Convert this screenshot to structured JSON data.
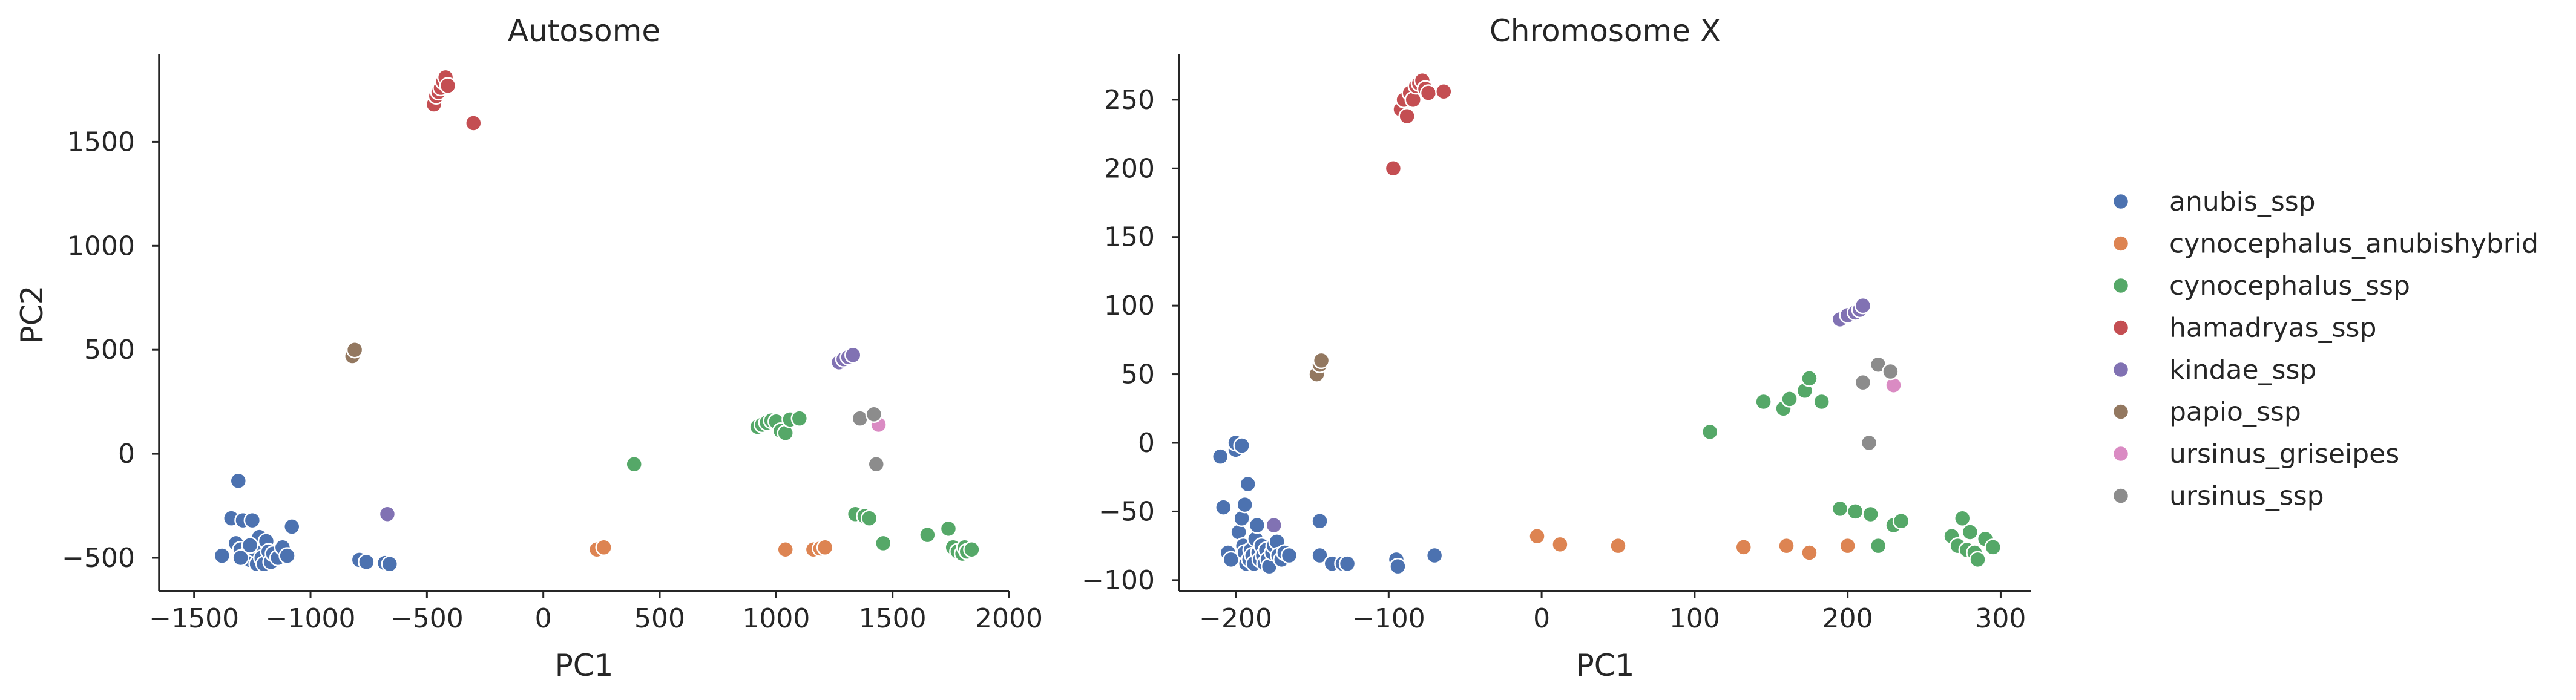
{
  "figure": {
    "legend_placement": "right",
    "legend_entries": [
      {
        "label": "anubis_ssp",
        "color": "#4c72b0"
      },
      {
        "label": "cynocephalus_anubishybrid",
        "color": "#dd8452"
      },
      {
        "label": "cynocephalus_ssp",
        "color": "#55a868"
      },
      {
        "label": "hamadryas_ssp",
        "color": "#c44e52"
      },
      {
        "label": "kindae_ssp",
        "color": "#8172b3"
      },
      {
        "label": "papio_ssp",
        "color": "#937860"
      },
      {
        "label": "ursinus_griseipes",
        "color": "#da8bc3"
      },
      {
        "label": "ursinus_ssp",
        "color": "#8c8c8c"
      }
    ]
  },
  "chart_data": [
    {
      "type": "scatter",
      "title": "Autosome",
      "xlabel": "PC1",
      "ylabel": "PC2",
      "xlim": [
        -1650,
        2000
      ],
      "ylim": [
        -660,
        1920
      ],
      "xticks": [
        -1500,
        -1000,
        -500,
        0,
        500,
        1000,
        1500,
        2000
      ],
      "xtick_labels": [
        "−1500",
        "−1000",
        "−500",
        "0",
        "500",
        "1000",
        "1500",
        "2000"
      ],
      "yticks": [
        -500,
        0,
        500,
        1000,
        1500
      ],
      "ytick_labels": [
        "−500",
        "0",
        "500",
        "1000",
        "1500"
      ],
      "grid": false,
      "series": [
        {
          "name": "anubis_ssp",
          "color": "#4c72b0",
          "points": [
            [
              -1380,
              -490
            ],
            [
              -1340,
              -310
            ],
            [
              -1320,
              -430
            ],
            [
              -1300,
              -460
            ],
            [
              -1310,
              -130
            ],
            [
              -1290,
              -320
            ],
            [
              -1270,
              -480
            ],
            [
              -1260,
              -510
            ],
            [
              -1250,
              -320
            ],
            [
              -1240,
              -460
            ],
            [
              -1230,
              -530
            ],
            [
              -1220,
              -400
            ],
            [
              -1210,
              -500
            ],
            [
              -1200,
              -530
            ],
            [
              -1190,
              -420
            ],
            [
              -1180,
              -470
            ],
            [
              -1170,
              -520
            ],
            [
              -1160,
              -480
            ],
            [
              -1140,
              -500
            ],
            [
              -1120,
              -450
            ],
            [
              -1100,
              -490
            ],
            [
              -1080,
              -350
            ],
            [
              -1300,
              -500
            ],
            [
              -1260,
              -440
            ],
            [
              -790,
              -510
            ],
            [
              -760,
              -520
            ],
            [
              -680,
              -525
            ],
            [
              -660,
              -530
            ]
          ]
        },
        {
          "name": "cynocephalus_anubishybrid",
          "color": "#dd8452",
          "points": [
            [
              230,
              -460
            ],
            [
              260,
              -450
            ],
            [
              1040,
              -460
            ],
            [
              1160,
              -460
            ],
            [
              1190,
              -455
            ],
            [
              1210,
              -450
            ]
          ]
        },
        {
          "name": "cynocephalus_ssp",
          "color": "#55a868",
          "points": [
            [
              390,
              -50
            ],
            [
              920,
              130
            ],
            [
              940,
              140
            ],
            [
              960,
              150
            ],
            [
              980,
              160
            ],
            [
              1000,
              155
            ],
            [
              1020,
              110
            ],
            [
              1040,
              100
            ],
            [
              1060,
              165
            ],
            [
              1100,
              170
            ],
            [
              1340,
              -290
            ],
            [
              1380,
              -300
            ],
            [
              1400,
              -310
            ],
            [
              1460,
              -430
            ],
            [
              1650,
              -390
            ],
            [
              1740,
              -360
            ],
            [
              1760,
              -450
            ],
            [
              1780,
              -470
            ],
            [
              1800,
              -480
            ],
            [
              1810,
              -450
            ],
            [
              1820,
              -470
            ],
            [
              1840,
              -460
            ]
          ]
        },
        {
          "name": "hamadryas_ssp",
          "color": "#c44e52",
          "points": [
            [
              -470,
              1680
            ],
            [
              -460,
              1720
            ],
            [
              -450,
              1740
            ],
            [
              -440,
              1760
            ],
            [
              -430,
              1790
            ],
            [
              -420,
              1810
            ],
            [
              -410,
              1770
            ],
            [
              -300,
              1590
            ]
          ]
        },
        {
          "name": "kindae_ssp",
          "color": "#8172b3",
          "points": [
            [
              -670,
              -290
            ],
            [
              1270,
              440
            ],
            [
              1290,
              455
            ],
            [
              1310,
              465
            ],
            [
              1330,
              475
            ]
          ]
        },
        {
          "name": "papio_ssp",
          "color": "#937860",
          "points": [
            [
              -820,
              470
            ],
            [
              -810,
              500
            ]
          ]
        },
        {
          "name": "ursinus_griseipes",
          "color": "#da8bc3",
          "points": [
            [
              1440,
              140
            ]
          ]
        },
        {
          "name": "ursinus_ssp",
          "color": "#8c8c8c",
          "points": [
            [
              1360,
              170
            ],
            [
              1420,
              190
            ],
            [
              1430,
              -50
            ]
          ]
        }
      ]
    },
    {
      "type": "scatter",
      "title": "Chromosome X",
      "xlabel": "PC1",
      "ylabel": "",
      "xlim": [
        -237,
        320
      ],
      "ylim": [
        -108,
        283
      ],
      "xticks": [
        -200,
        -100,
        0,
        100,
        200,
        300
      ],
      "xtick_labels": [
        "−200",
        "−100",
        "0",
        "100",
        "200",
        "300"
      ],
      "yticks": [
        -100,
        -50,
        0,
        50,
        100,
        150,
        200,
        250
      ],
      "ytick_labels": [
        "−100",
        "−50",
        "0",
        "50",
        "100",
        "150",
        "200",
        "250"
      ],
      "grid": false,
      "series": [
        {
          "name": "anubis_ssp",
          "color": "#4c72b0",
          "points": [
            [
              -210,
              -10
            ],
            [
              -208,
              -47
            ],
            [
              -205,
              -80
            ],
            [
              -203,
              -85
            ],
            [
              -200,
              -5
            ],
            [
              -198,
              -65
            ],
            [
              -196,
              -55
            ],
            [
              -195,
              -75
            ],
            [
              -194,
              -80
            ],
            [
              -193,
              -88
            ],
            [
              -192,
              -30
            ],
            [
              -191,
              -85
            ],
            [
              -190,
              -78
            ],
            [
              -189,
              -82
            ],
            [
              -188,
              -88
            ],
            [
              -187,
              -70
            ],
            [
              -186,
              -60
            ],
            [
              -185,
              -80
            ],
            [
              -184,
              -85
            ],
            [
              -183,
              -75
            ],
            [
              -182,
              -82
            ],
            [
              -181,
              -88
            ],
            [
              -180,
              -78
            ],
            [
              -179,
              -85
            ],
            [
              -178,
              -90
            ],
            [
              -176,
              -80
            ],
            [
              -175,
              -75
            ],
            [
              -173,
              -72
            ],
            [
              -172,
              -82
            ],
            [
              -170,
              -85
            ],
            [
              -168,
              -80
            ],
            [
              -165,
              -82
            ],
            [
              -200,
              0
            ],
            [
              -196,
              -2
            ],
            [
              -194,
              -45
            ],
            [
              -145,
              -57
            ],
            [
              -145,
              -82
            ],
            [
              -137,
              -88
            ],
            [
              -130,
              -88
            ],
            [
              -127,
              -88
            ],
            [
              -95,
              -85
            ],
            [
              -94,
              -90
            ],
            [
              -70,
              -82
            ]
          ]
        },
        {
          "name": "cynocephalus_anubishybrid",
          "color": "#dd8452",
          "points": [
            [
              -3,
              -68
            ],
            [
              12,
              -74
            ],
            [
              50,
              -75
            ],
            [
              132,
              -76
            ],
            [
              160,
              -75
            ],
            [
              175,
              -80
            ],
            [
              200,
              -75
            ]
          ]
        },
        {
          "name": "cynocephalus_ssp",
          "color": "#55a868",
          "points": [
            [
              110,
              8
            ],
            [
              145,
              30
            ],
            [
              158,
              25
            ],
            [
              162,
              32
            ],
            [
              172,
              38
            ],
            [
              175,
              47
            ],
            [
              183,
              30
            ],
            [
              195,
              -48
            ],
            [
              205,
              -50
            ],
            [
              215,
              -52
            ],
            [
              220,
              -75
            ],
            [
              230,
              -60
            ],
            [
              235,
              -57
            ],
            [
              268,
              -68
            ],
            [
              272,
              -75
            ],
            [
              275,
              -55
            ],
            [
              278,
              -78
            ],
            [
              280,
              -65
            ],
            [
              283,
              -80
            ],
            [
              285,
              -85
            ],
            [
              290,
              -70
            ],
            [
              295,
              -76
            ]
          ]
        },
        {
          "name": "hamadryas_ssp",
          "color": "#c44e52",
          "points": [
            [
              -97,
              200
            ],
            [
              -92,
              243
            ],
            [
              -90,
              250
            ],
            [
              -88,
              238
            ],
            [
              -86,
              255
            ],
            [
              -84,
              250
            ],
            [
              -82,
              260
            ],
            [
              -80,
              262
            ],
            [
              -78,
              264
            ],
            [
              -76,
              258
            ],
            [
              -74,
              255
            ],
            [
              -64,
              256
            ]
          ]
        },
        {
          "name": "kindae_ssp",
          "color": "#8172b3",
          "points": [
            [
              -175,
              -60
            ],
            [
              195,
              90
            ],
            [
              200,
              93
            ],
            [
              205,
              95
            ],
            [
              208,
              97
            ],
            [
              210,
              100
            ]
          ]
        },
        {
          "name": "papio_ssp",
          "color": "#937860",
          "points": [
            [
              -147,
              50
            ],
            [
              -145,
              57
            ],
            [
              -144,
              60
            ]
          ]
        },
        {
          "name": "ursinus_griseipes",
          "color": "#da8bc3",
          "points": [
            [
              230,
              42
            ]
          ]
        },
        {
          "name": "ursinus_ssp",
          "color": "#8c8c8c",
          "points": [
            [
              210,
              44
            ],
            [
              214,
              0
            ],
            [
              220,
              57
            ],
            [
              228,
              52
            ]
          ]
        }
      ]
    }
  ]
}
